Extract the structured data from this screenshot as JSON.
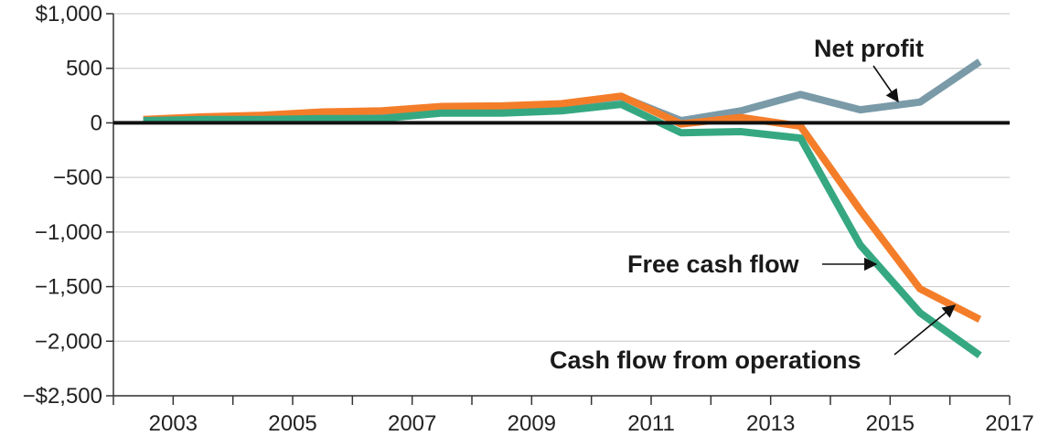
{
  "chart_data": {
    "type": "line",
    "x": [
      2002.5,
      2003.5,
      2004.5,
      2005.5,
      2006.5,
      2007.5,
      2008.5,
      2009.5,
      2010.5,
      2011.5,
      2012.5,
      2013.5,
      2014.5,
      2015.5,
      2016.5
    ],
    "series": [
      {
        "key": "net_profit",
        "values": [
          20,
          50,
          60,
          90,
          100,
          140,
          150,
          170,
          240,
          20,
          110,
          260,
          120,
          190,
          560
        ],
        "color": "#7a9aa8"
      },
      {
        "key": "free_cash_flow",
        "values": [
          30,
          55,
          70,
          100,
          110,
          150,
          155,
          175,
          245,
          -10,
          50,
          -30,
          -800,
          -1520,
          -1800
        ],
        "color": "#f47d2a"
      },
      {
        "key": "cash_flow_from_operations",
        "values": [
          20,
          30,
          30,
          40,
          40,
          90,
          90,
          110,
          170,
          -90,
          -80,
          -140,
          -1120,
          -1740,
          -2130
        ],
        "color": "#35a882"
      }
    ],
    "annotations": {
      "net_profit": "Net profit",
      "free_cash_flow": "Free cash flow",
      "cash_flow_from_operations": "Cash flow from operations"
    },
    "y_ticks": [
      {
        "value": 1000,
        "label": "$1,000"
      },
      {
        "value": 500,
        "label": "500"
      },
      {
        "value": 0,
        "label": "0"
      },
      {
        "value": -500,
        "label": "−500"
      },
      {
        "value": -1000,
        "label": "−1,000"
      },
      {
        "value": -1500,
        "label": "−1,500"
      },
      {
        "value": -2000,
        "label": "−2,000"
      },
      {
        "value": -2500,
        "label": "−$2,500"
      }
    ],
    "x_ticks": [
      2002,
      2003,
      2004,
      2005,
      2006,
      2007,
      2008,
      2009,
      2010,
      2011,
      2012,
      2013,
      2014,
      2015,
      2016,
      2017
    ],
    "x_tick_labels": [
      {
        "value": 2003,
        "label": "2003"
      },
      {
        "value": 2005,
        "label": "2005"
      },
      {
        "value": 2007,
        "label": "2007"
      },
      {
        "value": 2009,
        "label": "2009"
      },
      {
        "value": 2011,
        "label": "2011"
      },
      {
        "value": 2013,
        "label": "2013"
      },
      {
        "value": 2015,
        "label": "2015"
      },
      {
        "value": 2017,
        "label": "2017"
      }
    ],
    "xlim": [
      2002,
      2017
    ],
    "ylim": [
      -2500,
      1000
    ],
    "grid": true,
    "title": "",
    "xlabel": "",
    "ylabel": ""
  }
}
